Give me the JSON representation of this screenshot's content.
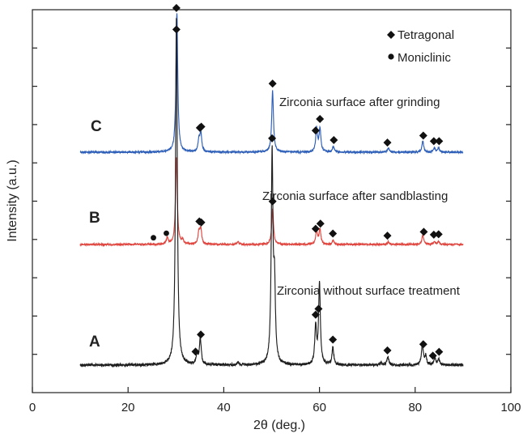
{
  "chart_data": {
    "type": "line",
    "xlabel": "2θ (deg.)",
    "ylabel": "Intensity (a.u.)",
    "xlim": [
      0,
      100
    ],
    "xticks": [
      0,
      20,
      40,
      60,
      80,
      100
    ],
    "xtick_labels": [
      "0",
      "20",
      "40",
      "60",
      "80",
      "100"
    ],
    "y_minor_tick_count": 10,
    "grid": false,
    "legend": {
      "placement": "top-right",
      "entries": [
        {
          "marker": "diamond",
          "label": "Tetragonal"
        },
        {
          "marker": "circle",
          "label": "Moniclinic"
        }
      ]
    },
    "series": [
      {
        "label": "C",
        "name": "Zirconia surface after grinding",
        "color": "#2e5fb8",
        "x_range": [
          10,
          90
        ],
        "peaks": [
          {
            "x": 30.2,
            "intensity": 1.0
          },
          {
            "x": 34.8,
            "intensity": 0.08
          },
          {
            "x": 35.2,
            "intensity": 0.14
          },
          {
            "x": 50.2,
            "intensity": 0.44
          },
          {
            "x": 59.4,
            "intensity": 0.17
          },
          {
            "x": 60.1,
            "intensity": 0.17
          },
          {
            "x": 62.9,
            "intensity": 0.04
          },
          {
            "x": 74.4,
            "intensity": 0.03
          },
          {
            "x": 81.6,
            "intensity": 0.08
          },
          {
            "x": 84.0,
            "intensity": 0.03
          },
          {
            "x": 84.9,
            "intensity": 0.03
          }
        ],
        "tetragonal_markers": [
          30.1,
          35.0,
          35.3,
          50.2,
          59.2,
          60.1,
          63.0,
          74.2,
          81.7,
          83.9,
          85.0
        ],
        "monoclinic_markers": []
      },
      {
        "label": "B",
        "name": "Zirconia surface after sandblasting",
        "color": "#e0463f",
        "x_range": [
          10,
          90
        ],
        "peaks": [
          {
            "x": 28.2,
            "intensity": 0.05
          },
          {
            "x": 30.1,
            "intensity": 0.63
          },
          {
            "x": 31.4,
            "intensity": 0.03
          },
          {
            "x": 34.8,
            "intensity": 0.09
          },
          {
            "x": 35.2,
            "intensity": 0.11
          },
          {
            "x": 43.0,
            "intensity": 0.02
          },
          {
            "x": 50.2,
            "intensity": 0.26
          },
          {
            "x": 59.4,
            "intensity": 0.1
          },
          {
            "x": 60.1,
            "intensity": 0.11
          },
          {
            "x": 62.9,
            "intensity": 0.03
          },
          {
            "x": 74.4,
            "intensity": 0.02
          },
          {
            "x": 81.6,
            "intensity": 0.07
          },
          {
            "x": 84.0,
            "intensity": 0.02
          },
          {
            "x": 84.9,
            "intensity": 0.02
          }
        ],
        "tetragonal_markers": [
          34.9,
          35.3,
          50.2,
          59.2,
          60.2,
          62.8,
          74.2,
          81.8,
          83.9,
          84.9
        ],
        "monoclinic_markers": [
          25.3,
          28.0
        ]
      },
      {
        "label": "A",
        "name": "Zirconia without surface treatment",
        "color": "#1e1e1e",
        "x_range": [
          10,
          90
        ],
        "peaks": [
          {
            "x": 30.1,
            "intensity": 1.6
          },
          {
            "x": 34.4,
            "intensity": 0.05
          },
          {
            "x": 35.1,
            "intensity": 0.12
          },
          {
            "x": 43.0,
            "intensity": 0.01
          },
          {
            "x": 50.1,
            "intensity": 0.95
          },
          {
            "x": 50.6,
            "intensity": 0.33
          },
          {
            "x": 59.2,
            "intensity": 0.17
          },
          {
            "x": 60.0,
            "intensity": 0.37
          },
          {
            "x": 62.8,
            "intensity": 0.08
          },
          {
            "x": 72.9,
            "intensity": 0.01
          },
          {
            "x": 74.3,
            "intensity": 0.04
          },
          {
            "x": 81.5,
            "intensity": 0.1
          },
          {
            "x": 82.2,
            "intensity": 0.04
          },
          {
            "x": 84.1,
            "intensity": 0.03
          },
          {
            "x": 84.9,
            "intensity": 0.03
          }
        ],
        "tetragonal_markers": [
          30.1,
          34.1,
          35.2,
          50.1,
          59.2,
          59.8,
          62.8,
          74.2,
          81.7,
          83.7,
          85.0
        ],
        "monoclinic_markers": []
      }
    ]
  }
}
